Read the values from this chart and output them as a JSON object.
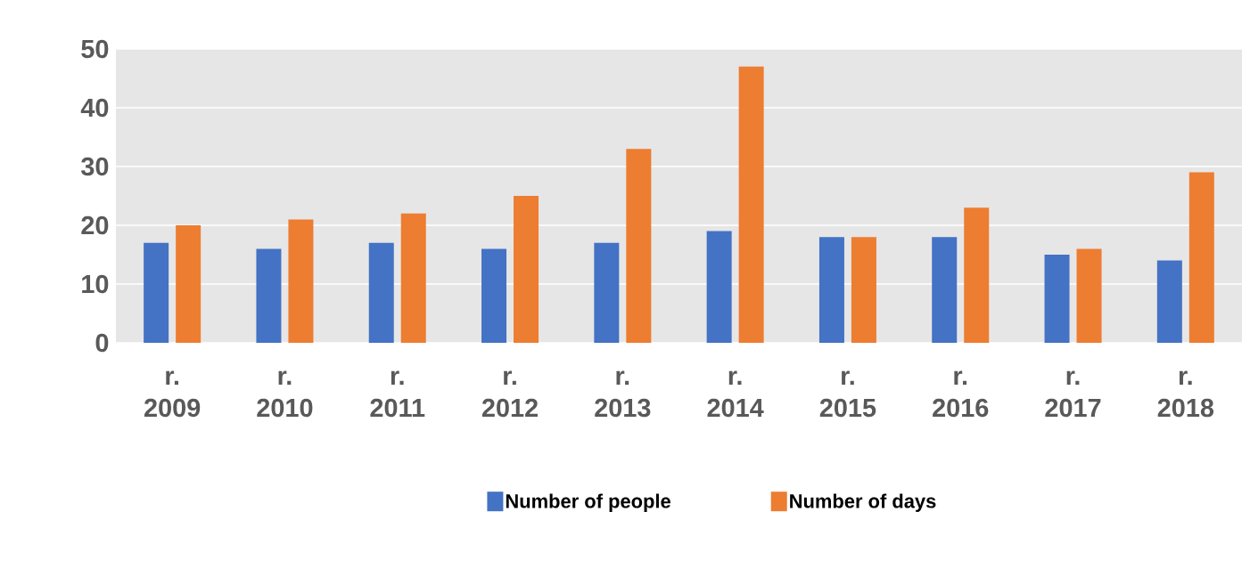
{
  "chart_data": {
    "type": "bar",
    "categories": [
      "r. 2009",
      "r. 2010",
      "r. 2011",
      "r. 2012",
      "r. 2013",
      "r. 2014",
      "r. 2015",
      "r. 2016",
      "r. 2017",
      "r. 2018"
    ],
    "series": [
      {
        "name": "Number of people",
        "color": "#4472c4",
        "values": [
          17,
          16,
          17,
          16,
          17,
          19,
          18,
          18,
          15,
          14
        ]
      },
      {
        "name": "Number of days",
        "color": "#ed7d31",
        "values": [
          20,
          21,
          22,
          25,
          33,
          47,
          18,
          23,
          16,
          29
        ]
      }
    ],
    "ylim": [
      0,
      50
    ],
    "yticks": [
      0,
      10,
      20,
      30,
      40,
      50
    ],
    "grid": "y",
    "legend": "bottom"
  }
}
